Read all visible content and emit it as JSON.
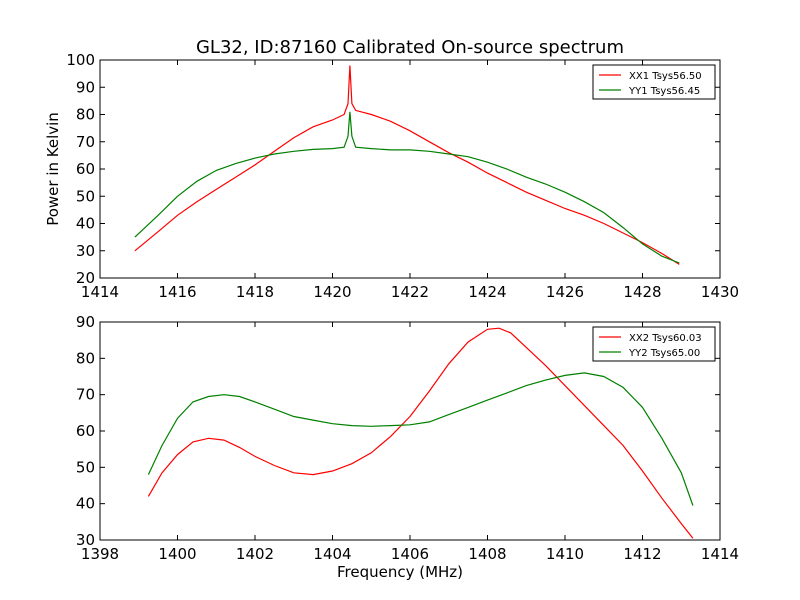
{
  "figure": {
    "title": "GL32, ID:87160 Calibrated On-source spectrum"
  },
  "chart_data": [
    {
      "type": "line",
      "ylabel": "Power in Kelvin",
      "xlabel": "",
      "xlim": [
        1414,
        1430
      ],
      "ylim": [
        20,
        100
      ],
      "xticks": [
        1414,
        1416,
        1418,
        1420,
        1422,
        1424,
        1426,
        1428,
        1430
      ],
      "yticks": [
        20,
        30,
        40,
        50,
        60,
        70,
        80,
        90,
        100
      ],
      "legend_position": "top-right",
      "series": [
        {
          "name": "XX1 Tsys56.50",
          "color": "#ff0000",
          "x": [
            1414.9,
            1415.5,
            1416,
            1416.5,
            1417,
            1417.5,
            1418,
            1418.5,
            1419,
            1419.5,
            1420,
            1420.3,
            1420.4,
            1420.45,
            1420.5,
            1420.6,
            1421,
            1421.5,
            1422,
            1422.5,
            1423,
            1423.5,
            1424,
            1424.5,
            1425,
            1425.5,
            1426,
            1426.5,
            1427,
            1427.5,
            1428,
            1428.5,
            1428.95
          ],
          "y": [
            30,
            37,
            43,
            48,
            52.5,
            57,
            61.5,
            66.5,
            71.5,
            75.5,
            78,
            80,
            84,
            98,
            84,
            81.5,
            80,
            77.5,
            74,
            70,
            66,
            62.5,
            58.5,
            55,
            51.5,
            48.5,
            45.5,
            43,
            40,
            36.5,
            33,
            29,
            25
          ]
        },
        {
          "name": "YY1 Tsys56.45",
          "color": "#008000",
          "x": [
            1414.9,
            1415.5,
            1416,
            1416.5,
            1417,
            1417.5,
            1418,
            1418.5,
            1419,
            1419.5,
            1420,
            1420.3,
            1420.4,
            1420.45,
            1420.5,
            1420.6,
            1421,
            1421.5,
            1422,
            1422.5,
            1423,
            1423.5,
            1424,
            1424.5,
            1425,
            1425.5,
            1426,
            1426.5,
            1427,
            1427.5,
            1428,
            1428.5,
            1428.95
          ],
          "y": [
            35,
            43,
            50,
            55.5,
            59.5,
            62,
            64,
            65.5,
            66.5,
            67.2,
            67.5,
            68,
            72,
            81,
            72,
            68,
            67.5,
            67,
            67,
            66.5,
            65.5,
            64.5,
            62.5,
            60,
            57,
            54.5,
            51.5,
            48,
            44,
            38.5,
            32.5,
            28,
            25.5
          ]
        }
      ]
    },
    {
      "type": "line",
      "ylabel": "",
      "xlabel": "Frequency (MHz)",
      "xlim": [
        1398,
        1414
      ],
      "ylim": [
        30,
        90
      ],
      "xticks": [
        1398,
        1400,
        1402,
        1404,
        1406,
        1408,
        1410,
        1412,
        1414
      ],
      "yticks": [
        30,
        40,
        50,
        60,
        70,
        80,
        90
      ],
      "legend_position": "top-right",
      "series": [
        {
          "name": "XX2 Tsys60.03",
          "color": "#ff0000",
          "x": [
            1399.25,
            1399.6,
            1400,
            1400.4,
            1400.8,
            1401.2,
            1401.6,
            1402,
            1402.5,
            1403,
            1403.5,
            1404,
            1404.5,
            1405,
            1405.5,
            1406,
            1406.5,
            1407,
            1407.5,
            1408,
            1408.3,
            1408.6,
            1409,
            1409.5,
            1410,
            1410.5,
            1411,
            1411.5,
            1412,
            1412.5,
            1413,
            1413.3
          ],
          "y": [
            42,
            48.5,
            53.5,
            57,
            58,
            57.5,
            55.5,
            53,
            50.5,
            48.5,
            48,
            49,
            51,
            54,
            58.5,
            64,
            71,
            78.5,
            84.5,
            88,
            88.3,
            87,
            83,
            78,
            72.5,
            67,
            61.5,
            56,
            49,
            41.5,
            34.5,
            30.5
          ]
        },
        {
          "name": "YY2 Tsys65.00",
          "color": "#008000",
          "x": [
            1399.25,
            1399.6,
            1400,
            1400.4,
            1400.8,
            1401.2,
            1401.6,
            1402,
            1402.5,
            1403,
            1403.5,
            1404,
            1404.5,
            1405,
            1405.5,
            1406,
            1406.5,
            1407,
            1407.5,
            1408,
            1408.5,
            1409,
            1409.5,
            1410,
            1410.5,
            1411,
            1411.5,
            1412,
            1412.5,
            1413,
            1413.3
          ],
          "y": [
            48,
            56,
            63.5,
            68,
            69.5,
            70,
            69.5,
            68,
            66,
            64,
            63,
            62,
            61.5,
            61.3,
            61.5,
            61.7,
            62.5,
            64.5,
            66.5,
            68.5,
            70.5,
            72.5,
            74,
            75.3,
            76,
            75,
            72,
            66.5,
            58,
            48.5,
            39.5
          ]
        }
      ]
    }
  ]
}
